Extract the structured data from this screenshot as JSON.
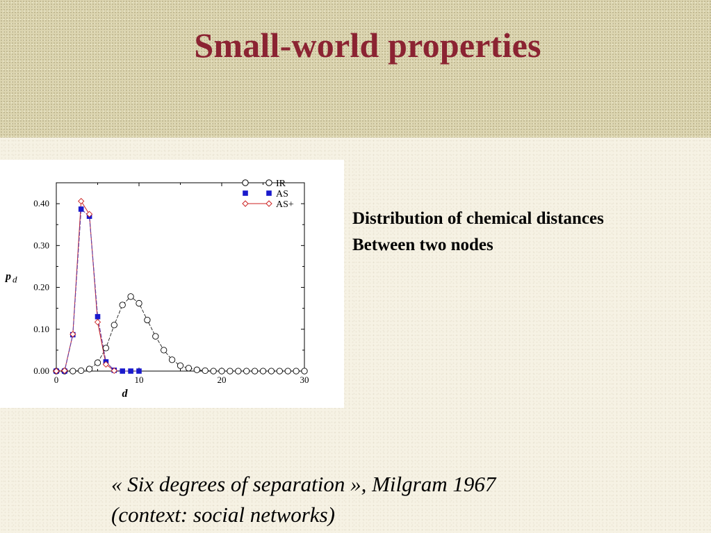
{
  "title": "Small-world properties",
  "description": [
    "Distribution of chemical distances",
    "Between two nodes"
  ],
  "quote": [
    "« Six degrees of separation », Milgram 1967",
    "(context: social networks)"
  ],
  "colors": {
    "title": "#8b2332",
    "IR": "#000000",
    "AS": "#1a1acc",
    "AS_plus": "#cc2222",
    "AS_line": "#6a3fa0"
  },
  "chart_data": {
    "type": "line",
    "xlabel": "d",
    "ylabel": "p",
    "ylabel_sub": "d",
    "xlim": [
      0,
      30
    ],
    "ylim": [
      0,
      0.45
    ],
    "x_ticks": [
      0,
      10,
      20,
      30
    ],
    "x_tick_labels": [
      "0",
      "10",
      "20",
      "30"
    ],
    "y_ticks": [
      0,
      0.1,
      0.2,
      0.3,
      0.4
    ],
    "y_tick_labels": [
      "0.00",
      "0.10",
      "0.20",
      "0.30",
      "0.40"
    ],
    "grid": false,
    "legend_position": "top-right",
    "series": [
      {
        "name": "IR",
        "marker": "open-circle",
        "x": [
          0,
          1,
          2,
          3,
          4,
          5,
          6,
          7,
          8,
          9,
          10,
          11,
          12,
          13,
          14,
          15,
          16,
          17,
          18,
          19,
          20,
          21,
          22,
          23,
          24,
          25,
          26,
          27,
          28,
          29,
          30
        ],
        "y": [
          0,
          0,
          0,
          0.001,
          0.005,
          0.02,
          0.055,
          0.11,
          0.158,
          0.178,
          0.162,
          0.122,
          0.083,
          0.05,
          0.027,
          0.013,
          0.007,
          0.003,
          0.001,
          0,
          0,
          0,
          0,
          0,
          0,
          0,
          0,
          0,
          0,
          0,
          0
        ]
      },
      {
        "name": "AS",
        "marker": "filled-square",
        "x": [
          0,
          1,
          2,
          3,
          4,
          5,
          6,
          7,
          8,
          9,
          10
        ],
        "y": [
          0,
          0,
          0.087,
          0.387,
          0.37,
          0.13,
          0.022,
          0.002,
          0,
          0,
          0
        ]
      },
      {
        "name": "AS+",
        "marker": "open-diamond-line",
        "x": [
          0,
          1,
          2,
          3,
          4,
          5,
          6,
          7
        ],
        "y": [
          0,
          0.001,
          0.088,
          0.406,
          0.375,
          0.117,
          0.016,
          0.001
        ]
      }
    ]
  }
}
